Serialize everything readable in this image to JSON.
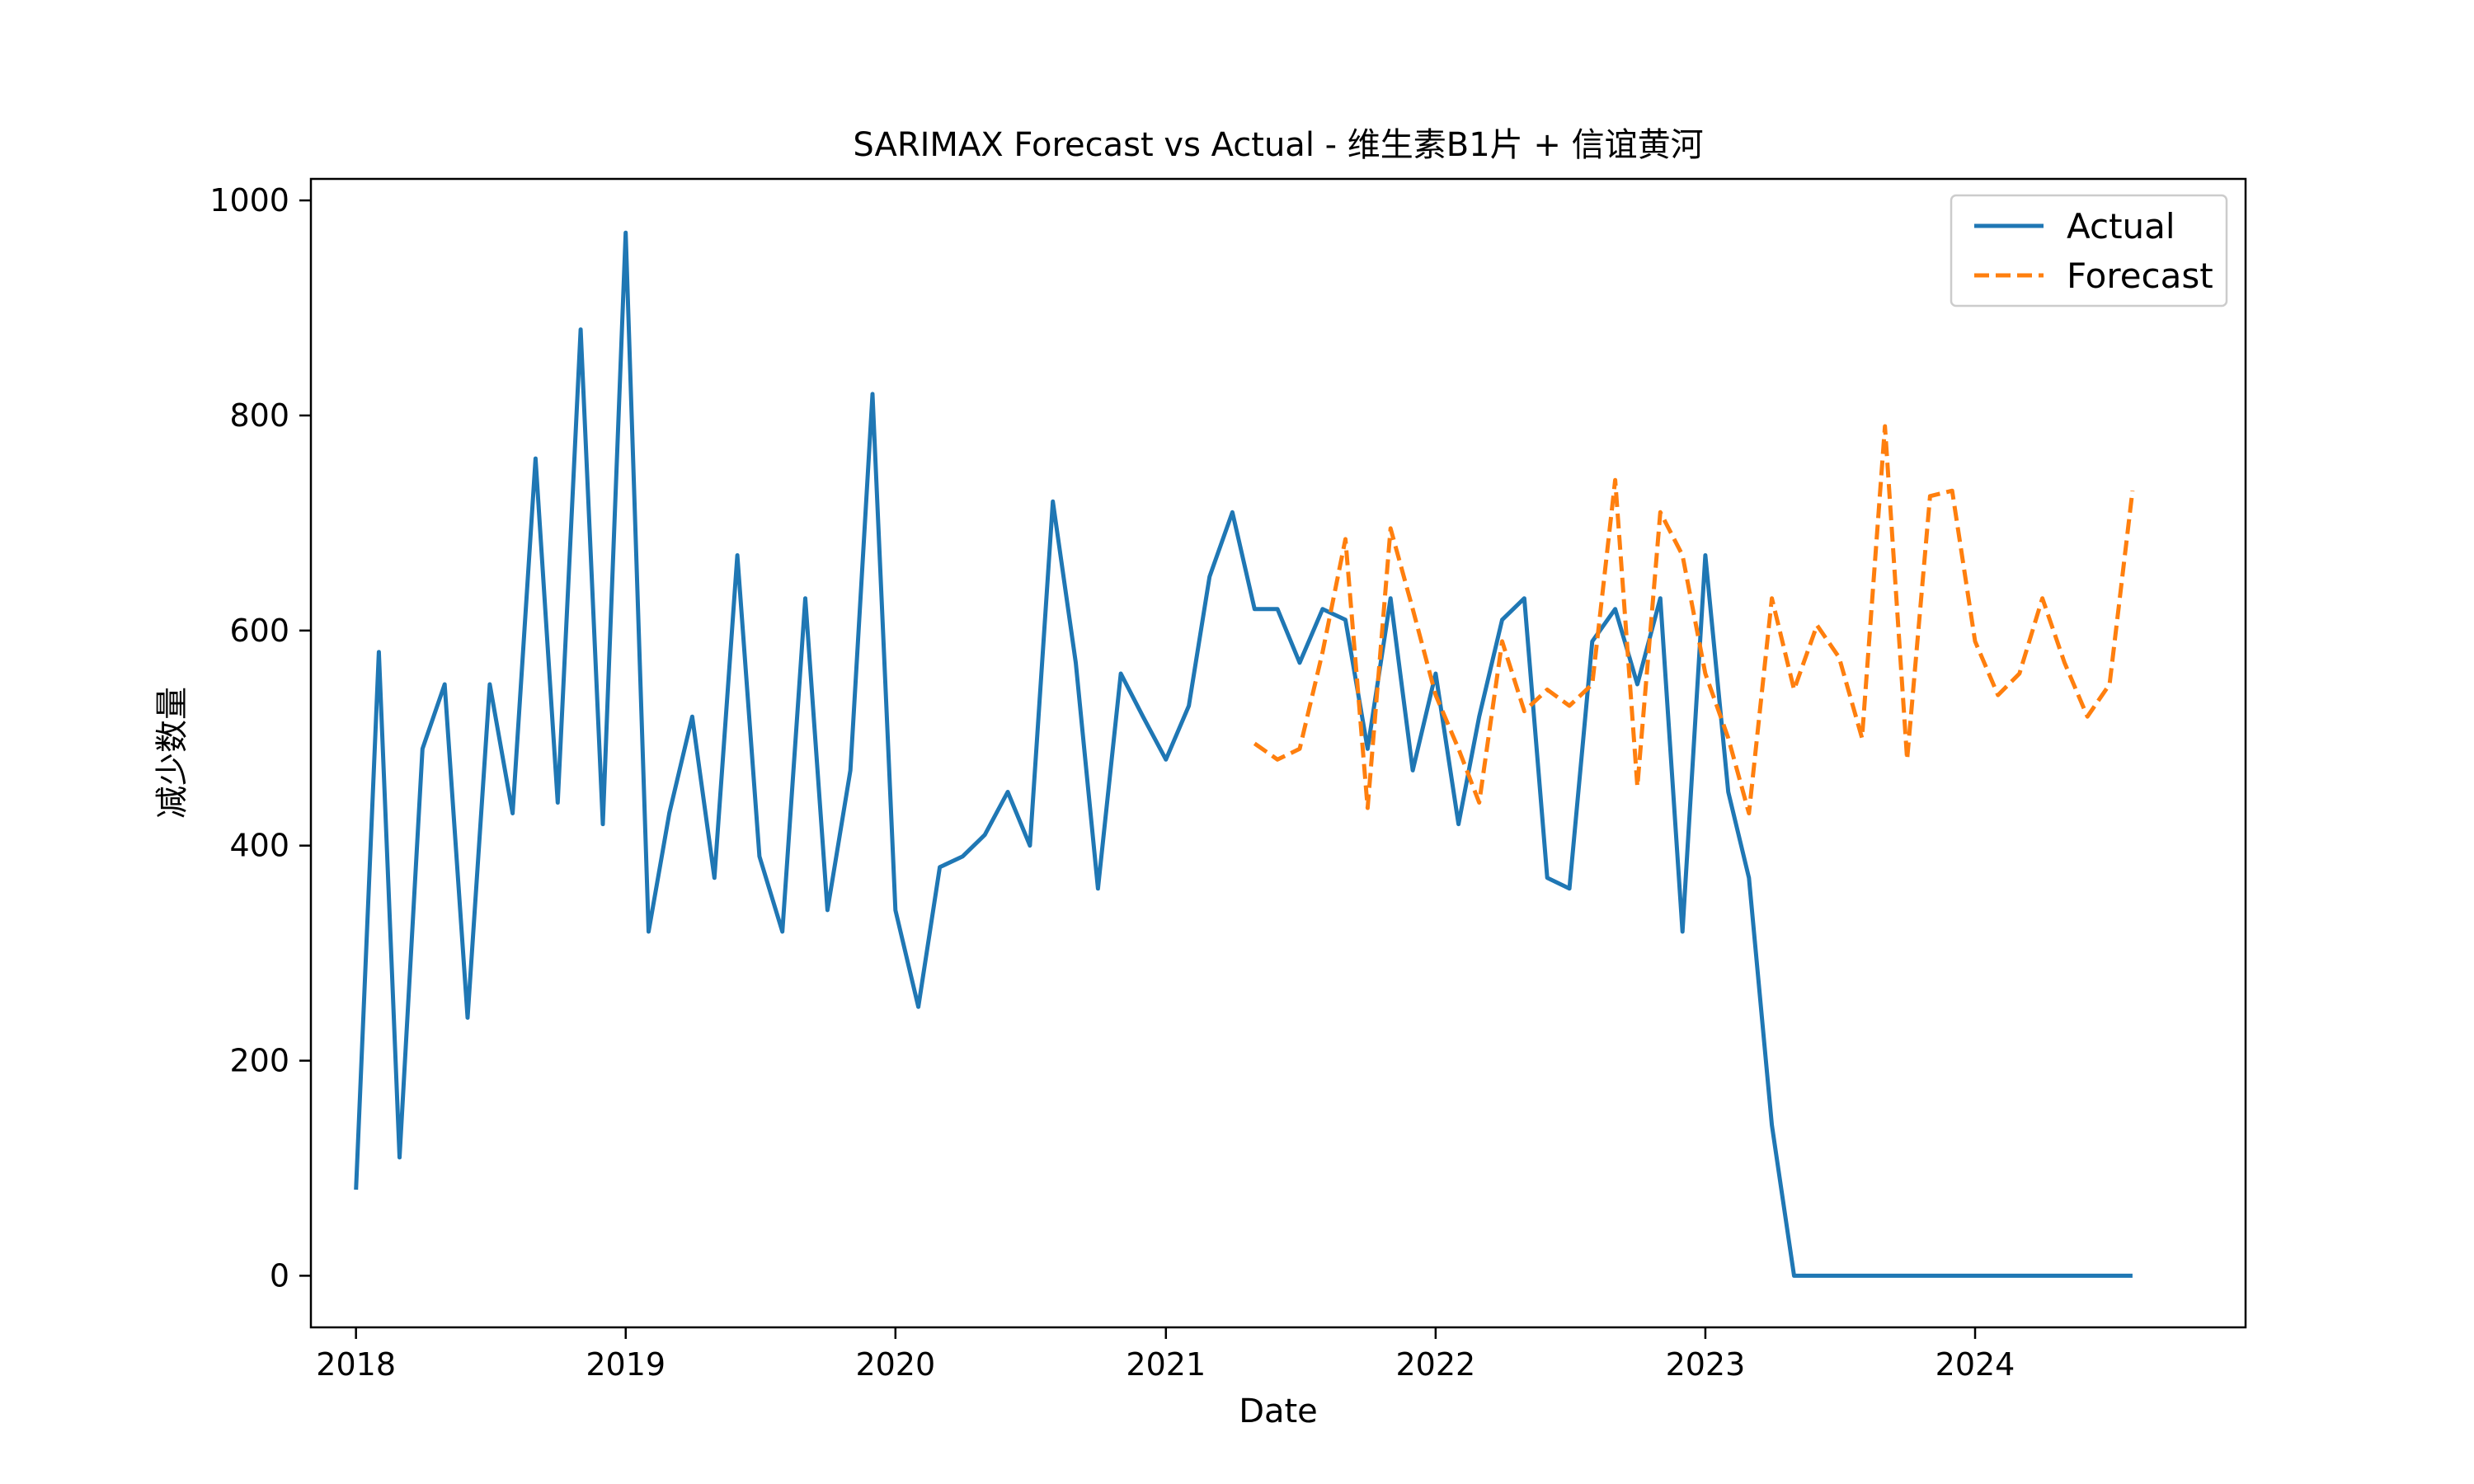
{
  "chart_data": {
    "type": "line",
    "title": "SARIMAX Forecast vs Actual - 维生素B1片 + 信谊黄河",
    "xlabel": "Date",
    "ylabel": "减少数量",
    "x_axis": {
      "type": "date",
      "range": [
        "2017-11-01",
        "2025-01-01"
      ],
      "ticks": [
        "2018",
        "2019",
        "2020",
        "2021",
        "2022",
        "2023",
        "2024"
      ]
    },
    "y_axis": {
      "range": [
        -48,
        1020
      ],
      "ticks": [
        "0",
        "200",
        "400",
        "600",
        "800",
        "1000"
      ]
    },
    "grid": false,
    "legend": {
      "position": "top-right",
      "entries": [
        "Actual",
        "Forecast"
      ]
    },
    "series": [
      {
        "name": "Actual",
        "color": "#1f77b4",
        "style": "solid",
        "x": [
          "2018-01",
          "2018-02",
          "2018-03",
          "2018-04",
          "2018-05",
          "2018-06",
          "2018-07",
          "2018-08",
          "2018-09",
          "2018-10",
          "2018-11",
          "2018-12",
          "2019-01",
          "2019-02",
          "2019-03",
          "2019-04",
          "2019-05",
          "2019-06",
          "2019-07",
          "2019-08",
          "2019-09",
          "2019-10",
          "2019-11",
          "2019-12",
          "2020-01",
          "2020-02",
          "2020-03",
          "2020-04",
          "2020-05",
          "2020-06",
          "2020-07",
          "2020-08",
          "2020-09",
          "2020-10",
          "2020-11",
          "2020-12",
          "2021-01",
          "2021-02",
          "2021-03",
          "2021-04",
          "2021-05",
          "2021-06",
          "2021-07",
          "2021-08",
          "2021-09",
          "2021-10",
          "2021-11",
          "2021-12",
          "2022-01",
          "2022-02",
          "2022-03",
          "2022-04",
          "2022-05",
          "2022-06",
          "2022-07",
          "2022-08",
          "2022-09",
          "2022-10",
          "2022-11",
          "2022-12",
          "2023-01",
          "2023-02",
          "2023-03",
          "2023-04",
          "2023-05",
          "2023-06",
          "2023-07",
          "2023-08",
          "2023-09",
          "2023-10",
          "2023-11",
          "2023-12",
          "2024-01",
          "2024-02",
          "2024-03",
          "2024-04",
          "2024-05",
          "2024-06",
          "2024-07",
          "2024-08"
        ],
        "y": [
          80,
          580,
          110,
          490,
          550,
          240,
          550,
          430,
          760,
          440,
          880,
          420,
          970,
          320,
          430,
          520,
          370,
          670,
          390,
          320,
          630,
          340,
          470,
          820,
          340,
          250,
          380,
          390,
          410,
          450,
          400,
          720,
          570,
          360,
          560,
          520,
          480,
          530,
          650,
          710,
          620,
          620,
          570,
          620,
          610,
          490,
          630,
          470,
          560,
          420,
          520,
          610,
          630,
          370,
          360,
          590,
          620,
          550,
          630,
          320,
          670,
          450,
          370,
          140,
          0,
          0,
          0,
          0,
          0,
          0,
          0,
          0,
          0,
          0,
          0,
          0,
          0,
          0,
          0,
          0
        ]
      },
      {
        "name": "Forecast",
        "color": "#ff7f0e",
        "style": "dashed",
        "x": [
          "2021-05",
          "2021-06",
          "2021-07",
          "2021-08",
          "2021-09",
          "2021-10",
          "2021-11",
          "2021-12",
          "2022-01",
          "2022-02",
          "2022-03",
          "2022-04",
          "2022-05",
          "2022-06",
          "2022-07",
          "2022-08",
          "2022-09",
          "2022-10",
          "2022-11",
          "2022-12",
          "2023-01",
          "2023-02",
          "2023-03",
          "2023-04",
          "2023-05",
          "2023-06",
          "2023-07",
          "2023-08",
          "2023-09",
          "2023-10",
          "2023-11",
          "2023-12",
          "2024-01",
          "2024-02",
          "2024-03",
          "2024-04",
          "2024-05",
          "2024-06",
          "2024-07",
          "2024-08"
        ],
        "y": [
          495,
          480,
          490,
          580,
          685,
          435,
          695,
          620,
          540,
          490,
          440,
          590,
          525,
          545,
          530,
          550,
          740,
          455,
          710,
          670,
          560,
          500,
          430,
          630,
          545,
          605,
          575,
          500,
          790,
          480,
          725,
          730,
          590,
          540,
          560,
          630,
          570,
          520,
          550,
          730
        ]
      }
    ]
  }
}
